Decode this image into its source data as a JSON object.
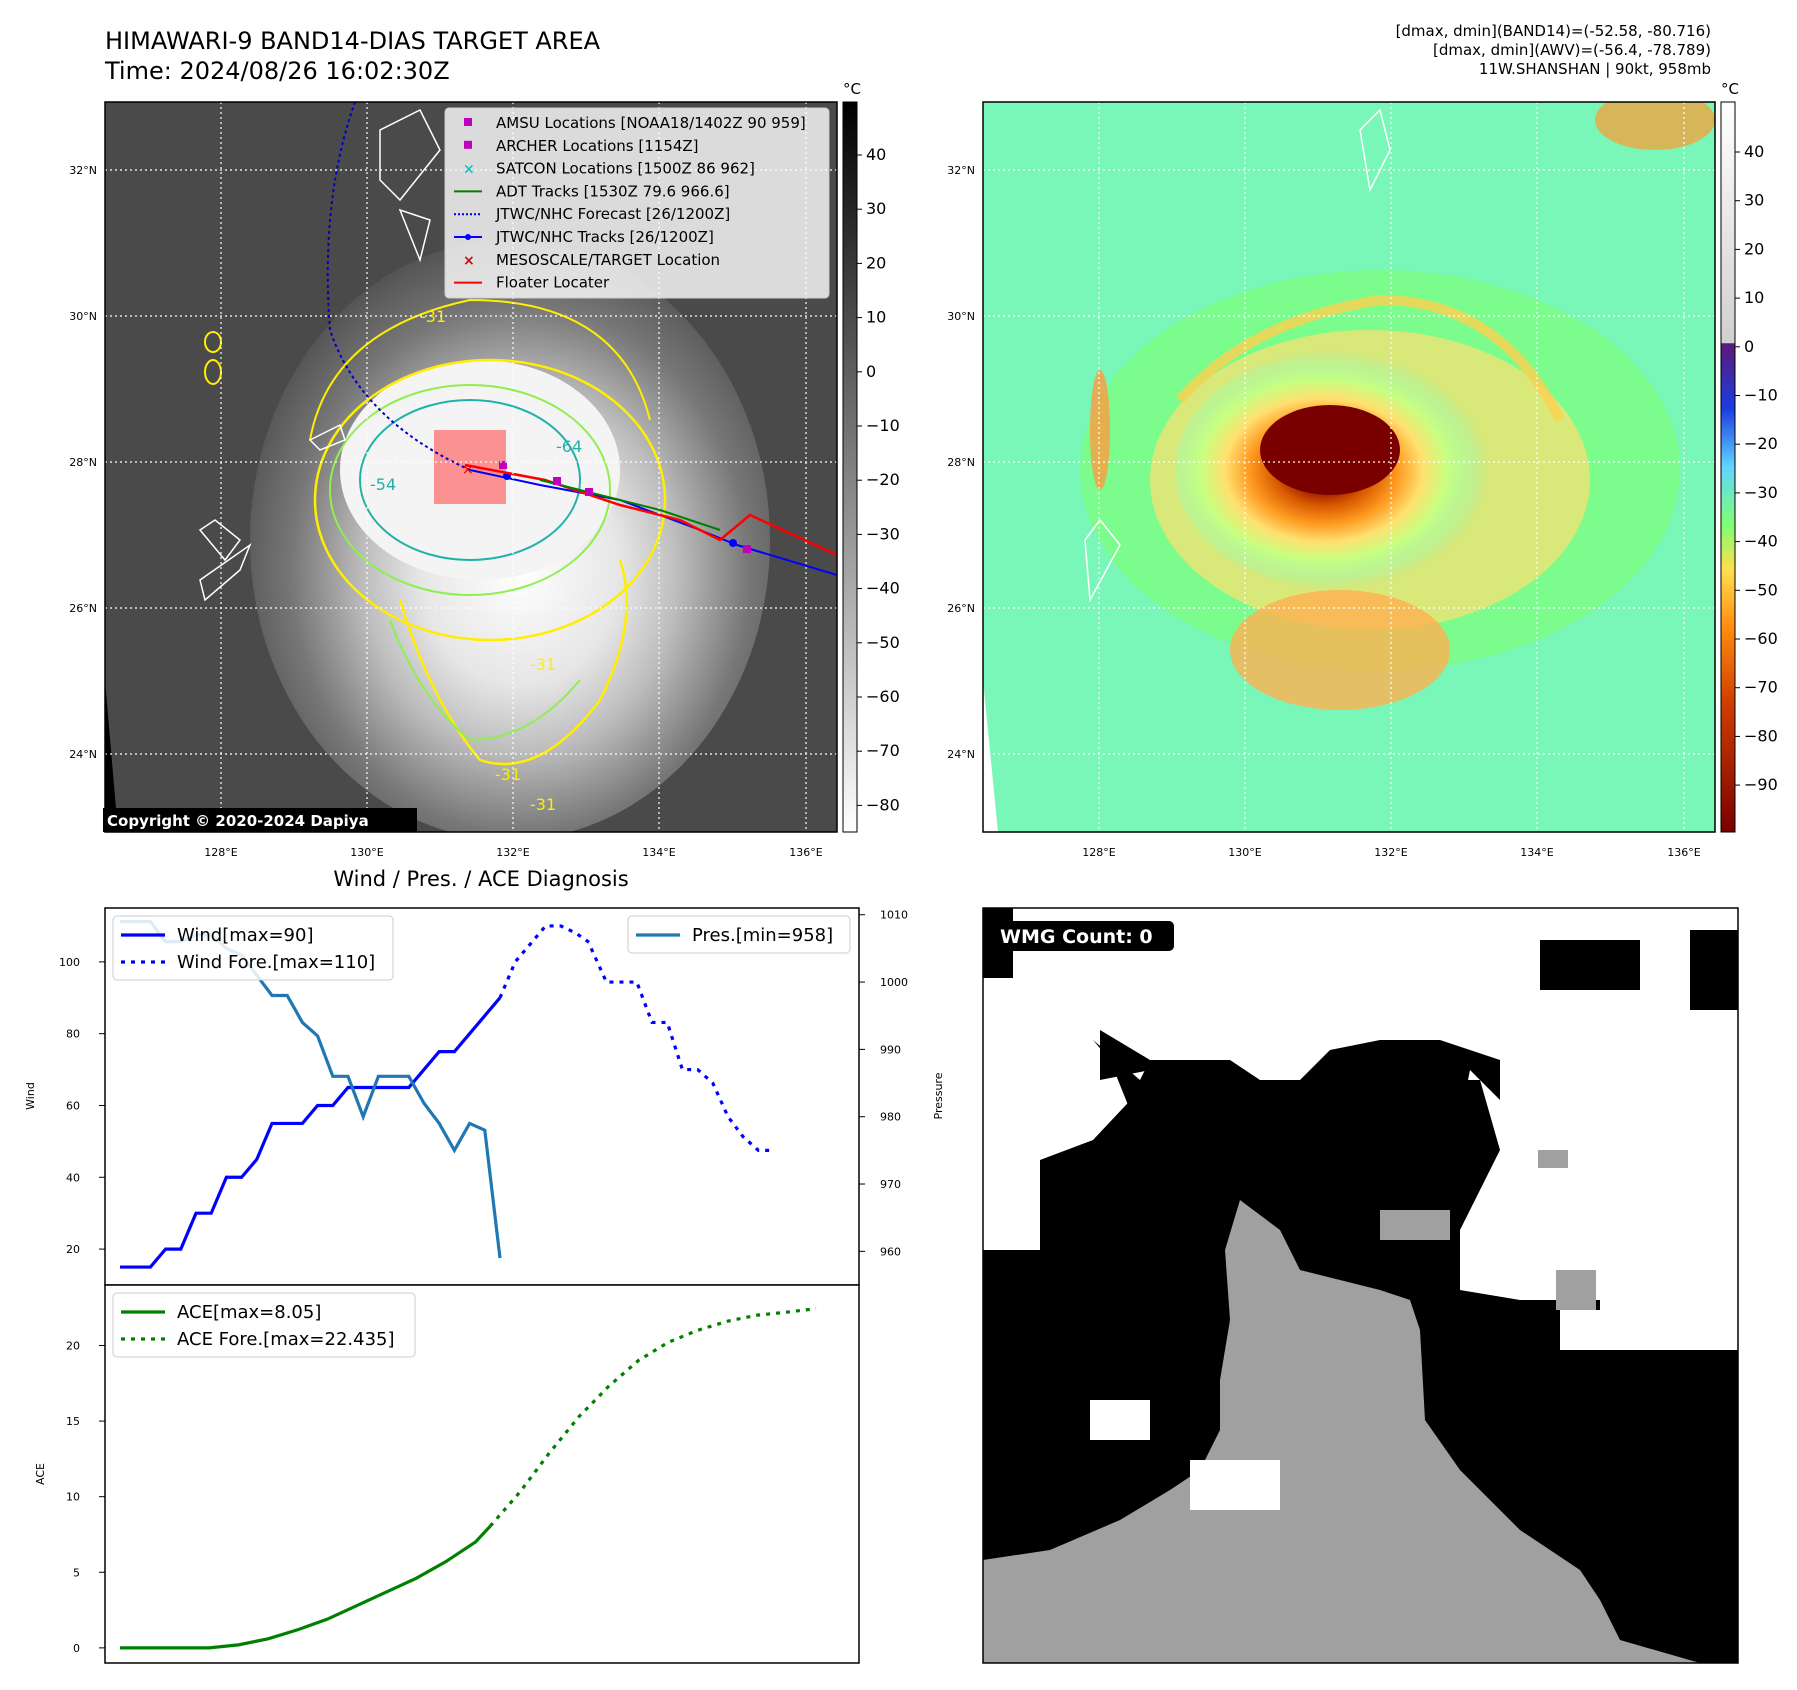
{
  "header": {
    "title_line1": "HIMAWARI-9 BAND14-DIAS TARGET AREA",
    "title_line2": "Time: 2024/08/26 16:02:30Z",
    "info_line1": "[dmax, dmin](BAND14)=(-52.58, -80.716)",
    "info_line2": "[dmax, dmin](AWV)=(-56.4, -78.789)",
    "info_line3": "11W.SHANSHAN | 90kt, 958mb"
  },
  "map": {
    "lat_labels": [
      "32°N",
      "30°N",
      "28°N",
      "26°N",
      "24°N"
    ],
    "lon_labels": [
      "128°E",
      "130°E",
      "132°E",
      "134°E",
      "136°E"
    ],
    "contour_labels": [
      "-64",
      "-54",
      "-31",
      "-31",
      "-31",
      "-31"
    ],
    "copyright": "Copyright © 2020-2024 Dapiya",
    "legend": [
      {
        "label": "AMSU Locations [NOAA18/1402Z 90 959]",
        "marker": "square",
        "color": "#bf00bf"
      },
      {
        "label": "ARCHER Locations [1154Z]",
        "marker": "square",
        "color": "#bf00bf"
      },
      {
        "label": "SATCON Locations [1500Z 86 962]",
        "marker": "x",
        "color": "#17becf"
      },
      {
        "label": "ADT Tracks [1530Z 79.6 966.6]",
        "marker": "line",
        "color": "#008000"
      },
      {
        "label": "JTWC/NHC Forecast [26/1200Z]",
        "marker": "dotted",
        "color": "#0000cd"
      },
      {
        "label": "JTWC/NHC Tracks [26/1200Z]",
        "marker": "dotline",
        "color": "#0000ff"
      },
      {
        "label": "MESOSCALE/TARGET Location",
        "marker": "x",
        "color": "#e00000"
      },
      {
        "label": "Floater Locater",
        "marker": "line",
        "color": "#ff0000"
      }
    ]
  },
  "colorbars": {
    "unit": "°C",
    "gray_ticks": [
      "40",
      "30",
      "20",
      "10",
      "0",
      "−10",
      "−20",
      "−30",
      "−40",
      "−50",
      "−60",
      "−70",
      "−80"
    ],
    "color_ticks": [
      "40",
      "30",
      "20",
      "10",
      "0",
      "−10",
      "−20",
      "−30",
      "−40",
      "−50",
      "−60",
      "−70",
      "−80",
      "−90"
    ]
  },
  "wmg": {
    "label": "WMG Count: 0"
  },
  "chart_data": [
    {
      "type": "line",
      "title": "Wind / Pres. / ACE Diagnosis",
      "ylabel": "Wind",
      "y2label": "Pressure",
      "ylim": [
        10,
        115
      ],
      "y2lim": [
        955,
        1011
      ],
      "yticks": [
        20,
        40,
        60,
        80,
        100
      ],
      "y2ticks": [
        960,
        970,
        980,
        990,
        1000,
        1010
      ],
      "series": [
        {
          "name": "Wind[max=90]",
          "axis": "left",
          "style": "solid",
          "color": "#0000ff",
          "x": [
            0,
            1,
            2,
            3,
            4,
            5,
            6,
            7,
            8,
            9,
            10,
            11,
            12,
            13,
            14,
            15,
            16,
            17,
            18,
            19,
            20,
            21,
            22,
            23,
            24,
            25
          ],
          "values": [
            15,
            15,
            15,
            20,
            20,
            30,
            30,
            40,
            40,
            45,
            55,
            55,
            55,
            60,
            60,
            65,
            65,
            65,
            65,
            65,
            70,
            75,
            75,
            80,
            85,
            90
          ]
        },
        {
          "name": "Wind Fore.[max=110]",
          "axis": "left",
          "style": "dotted",
          "color": "#0000ff",
          "x": [
            25,
            26,
            27,
            28,
            29,
            30,
            31
          ],
          "values": [
            90,
            100,
            105,
            110,
            110,
            108,
            105
          ]
        },
        {
          "name": "Pres.[min=958]",
          "axis": "right",
          "style": "solid",
          "color": "#1f77b4",
          "x": [
            0,
            1,
            2,
            3,
            4,
            5,
            6,
            7,
            8,
            9,
            10,
            11,
            12,
            13,
            14,
            15,
            16,
            17,
            18,
            19,
            20,
            21,
            22,
            23,
            24,
            25
          ],
          "values": [
            1009,
            1009,
            1009,
            1006,
            1006,
            1007,
            1007,
            1005,
            1004,
            1001,
            998,
            998,
            994,
            992,
            986,
            986,
            980,
            986,
            986,
            986,
            982,
            979,
            975,
            979,
            978,
            959
          ]
        },
        {
          "name": "",
          "axis": "right",
          "style": "dotted",
          "color": "#0000ff",
          "x": [
            31,
            32,
            33,
            34,
            35,
            36,
            37,
            38,
            39,
            40,
            41,
            42,
            43
          ],
          "values": [
            1005,
            1000,
            1000,
            1000,
            994,
            994,
            987,
            987,
            985,
            980,
            977,
            975,
            975
          ]
        }
      ]
    },
    {
      "type": "line",
      "ylabel": "ACE",
      "ylim": [
        -1,
        24
      ],
      "yticks": [
        0,
        5,
        10,
        15,
        20
      ],
      "series": [
        {
          "name": "ACE[max=8.05]",
          "style": "solid",
          "color": "#008000",
          "x": [
            0,
            2,
            4,
            6,
            8,
            10,
            12,
            14,
            16,
            18,
            20,
            22,
            24,
            25
          ],
          "values": [
            0,
            0,
            0,
            0,
            0.2,
            0.6,
            1.2,
            1.9,
            2.8,
            3.7,
            4.6,
            5.7,
            7.0,
            8.05
          ]
        },
        {
          "name": "ACE Fore.[max=22.435]",
          "style": "dotted",
          "color": "#008000",
          "x": [
            25,
            27,
            29,
            31,
            33,
            35,
            37,
            39,
            41,
            43,
            45,
            47
          ],
          "values": [
            8.05,
            10.3,
            12.9,
            15.3,
            17.3,
            19.0,
            20.2,
            21.0,
            21.6,
            22.0,
            22.2,
            22.435
          ]
        }
      ]
    }
  ]
}
